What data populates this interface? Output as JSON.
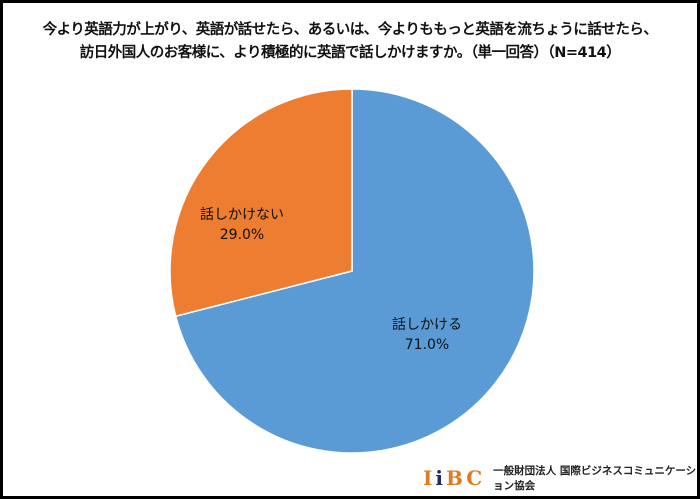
{
  "chart_data": {
    "type": "pie",
    "title": "今より英語力が上がり、英語が話せたら、あるいは、今よりももっと英語を流ちょうに話せたら、\n訪日外国人のお客様に、より積極的に英語で話しかけますか。（単一回答）（N=414）",
    "title_lines": [
      "今より英語力が上がり、英語が話せたら、あるいは、今よりももっと英語を流ちょうに話せたら、",
      "訪日外国人のお客様に、より積極的に英語で話しかけますか。（単一回答）（N=414）"
    ],
    "slices": [
      {
        "label": "話しかける",
        "value": 71.0,
        "value_label": "71.0%",
        "color": "#5b9bd5"
      },
      {
        "label": "話しかけない",
        "value": 29.0,
        "value_label": "29.0%",
        "color": "#ed7d31"
      }
    ],
    "start": "12 o'clock",
    "direction": "clockwise"
  },
  "footer": {
    "logo": "IIBC",
    "organization": "一般財団法人 国際ビジネスコミュニケーション協会"
  }
}
